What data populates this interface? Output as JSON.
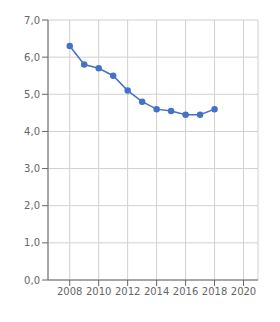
{
  "chart_data": {
    "type": "line",
    "x": [
      2008,
      2009,
      2010,
      2011,
      2012,
      2013,
      2014,
      2015,
      2016,
      2017,
      2018
    ],
    "series": [
      {
        "values": [
          6.3,
          5.8,
          5.7,
          5.5,
          5.1,
          4.8,
          4.6,
          4.55,
          4.45,
          4.45,
          4.6
        ],
        "color": "#4472c4",
        "marker": "circle"
      }
    ],
    "xlim": [
      2006.5,
      2021
    ],
    "ylim": [
      0.0,
      7.0
    ],
    "xticks": [
      2008,
      2010,
      2012,
      2014,
      2016,
      2018,
      2020
    ],
    "yticks": [
      {
        "value": 0.0,
        "label": "0,0"
      },
      {
        "value": 1.0,
        "label": "1,0"
      },
      {
        "value": 2.0,
        "label": "2,0"
      },
      {
        "value": 3.0,
        "label": "3,0"
      },
      {
        "value": 4.0,
        "label": "4,0"
      },
      {
        "value": 5.0,
        "label": "5,0"
      },
      {
        "value": 6.0,
        "label": "6,0"
      },
      {
        "value": 7.0,
        "label": "7,0"
      }
    ],
    "grid": true
  }
}
